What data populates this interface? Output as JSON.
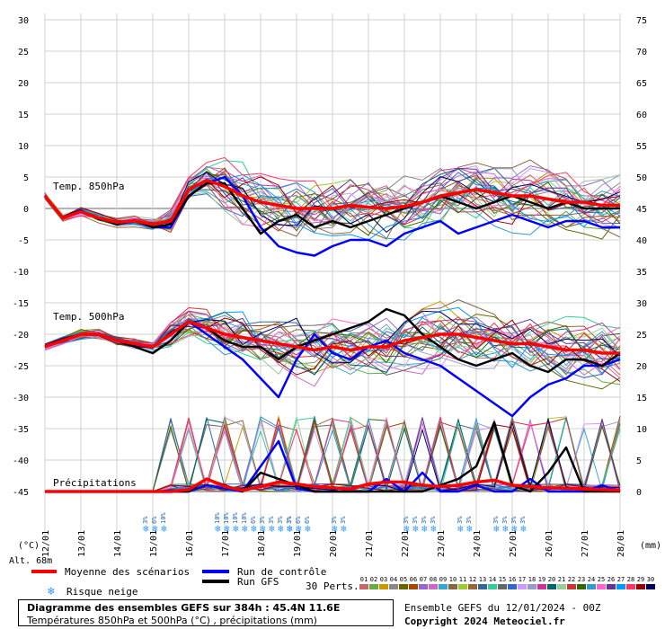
{
  "chart_data": {
    "type": "line",
    "title": "Diagramme des ensembles GEFS sur 384h : 45.4N 11.6E",
    "subtitle": "Températures 850hPa et 500hPa (°C) , précipitations (mm)",
    "run_info": "Ensemble GEFS du 12/01/2024 - 00Z",
    "copyright": "Copyright 2024 Meteociel.fr",
    "left_axis_unit": "(°C)",
    "right_axis_unit": "(mm)",
    "altitude_label": "Alt. 68m",
    "left_ticks": [
      30,
      25,
      20,
      15,
      10,
      5,
      0,
      -5,
      -10,
      -15,
      -20,
      -25,
      -30,
      -35,
      -40,
      -45
    ],
    "right_ticks": [
      75,
      70,
      65,
      60,
      55,
      50,
      45,
      40,
      35,
      30,
      25,
      20,
      15,
      10,
      5,
      0
    ],
    "ylim": [
      -45,
      30
    ],
    "right_ylim": [
      0,
      75
    ],
    "x_dates": [
      "12/01",
      "13/01",
      "14/01",
      "15/01",
      "16/01",
      "17/01",
      "18/01",
      "19/01",
      "20/01",
      "21/01",
      "22/01",
      "23/01",
      "24/01",
      "25/01",
      "26/01",
      "27/01",
      "28/01"
    ],
    "grid": true,
    "section_labels": {
      "t850": "Temp. 850hPa",
      "t500": "Temp. 500hPa",
      "precip": "Précipitations"
    },
    "hours": [
      0,
      12,
      24,
      36,
      48,
      60,
      72,
      84,
      96,
      108,
      120,
      132,
      144,
      156,
      168,
      180,
      192,
      204,
      216,
      228,
      240,
      252,
      264,
      276,
      288,
      300,
      312,
      324,
      336,
      348,
      360,
      372,
      384
    ],
    "series": [
      {
        "name": "Moyenne des scénarios",
        "group": "t850",
        "color": "#ff0000",
        "values": [
          2,
          -1.5,
          -0.5,
          -1.5,
          -2.2,
          -2,
          -2.5,
          -2,
          3,
          4.5,
          3.5,
          2,
          1,
          0.5,
          0,
          0,
          0,
          0.5,
          0.2,
          0,
          0.3,
          1,
          2,
          2.5,
          3,
          2.5,
          2,
          2,
          1.5,
          1,
          1,
          0.5,
          0.5
        ]
      },
      {
        "name": "Run de contrôle",
        "group": "t850",
        "color": "#0000ff",
        "values": [
          2,
          -1.5,
          -0.5,
          -1.5,
          -2.5,
          -2,
          -3,
          -3,
          2,
          4,
          5,
          2,
          -3,
          -6,
          -7,
          -7.5,
          -6,
          -5,
          -5,
          -6,
          -4,
          -3,
          -2,
          -4,
          -3,
          -2,
          -1,
          -2,
          -3,
          -2,
          -2,
          -3,
          -3
        ]
      },
      {
        "name": "Run GFS",
        "group": "t850",
        "color": "#000000",
        "values": [
          2,
          -1.5,
          -0.5,
          -1.5,
          -2.5,
          -2,
          -3,
          -2.5,
          2,
          4,
          4,
          0,
          -4,
          -2,
          -1,
          -3,
          -2,
          -3,
          -2,
          -1,
          0,
          1,
          2,
          1,
          0,
          1,
          2,
          1,
          0,
          1,
          0,
          0,
          0
        ]
      },
      {
        "name": "Moyenne des scénarios",
        "group": "t500",
        "color": "#ff0000",
        "values": [
          -22,
          -21,
          -20,
          -20,
          -21,
          -21.5,
          -22,
          -20,
          -18,
          -19,
          -20,
          -20.5,
          -21,
          -21.5,
          -22,
          -22.5,
          -22,
          -22.5,
          -22,
          -22,
          -21,
          -20.5,
          -20,
          -20,
          -20.5,
          -21,
          -21.5,
          -21.5,
          -22,
          -22.5,
          -22.5,
          -23,
          -23
        ]
      },
      {
        "name": "Run de contrôle",
        "group": "t500",
        "color": "#0000ff",
        "values": [
          -22,
          -21,
          -20,
          -20,
          -21,
          -22,
          -23,
          -21,
          -18,
          -20,
          -22,
          -24,
          -27,
          -30,
          -24,
          -20,
          -23,
          -24,
          -22,
          -21,
          -23,
          -24,
          -25,
          -27,
          -29,
          -31,
          -33,
          -30,
          -28,
          -27,
          -25,
          -25,
          -24
        ]
      },
      {
        "name": "Run GFS",
        "group": "t500",
        "color": "#000000",
        "values": [
          -22,
          -21,
          -20,
          -20,
          -21,
          -22,
          -23,
          -21,
          -18,
          -19,
          -21,
          -22,
          -22,
          -24,
          -22,
          -21,
          -20,
          -19,
          -18,
          -16,
          -17,
          -20,
          -22,
          -24,
          -25,
          -24,
          -23,
          -25,
          -26,
          -24,
          -24,
          -25,
          -23
        ]
      },
      {
        "name": "Moyenne des scénarios",
        "group": "precip",
        "color": "#ff0000",
        "values": [
          0,
          0,
          0,
          0,
          0,
          0,
          0,
          0,
          0.3,
          2,
          0.8,
          0.2,
          0.8,
          1.5,
          1.2,
          0.8,
          0.6,
          0.4,
          1.2,
          1.5,
          1.5,
          1,
          0.8,
          1,
          1.5,
          1.8,
          1,
          0.8,
          0.6,
          0.5,
          0.4,
          0.3,
          0.2
        ]
      },
      {
        "name": "Run de contrôle",
        "group": "precip",
        "color": "#0000ff",
        "values": [
          0,
          0,
          0,
          0,
          0,
          0,
          0,
          0,
          0,
          1,
          0.5,
          0,
          4,
          8,
          0.5,
          0,
          0,
          0,
          0,
          2,
          0,
          3,
          0,
          0,
          1,
          0,
          0,
          2,
          0,
          0,
          0,
          1,
          0
        ]
      },
      {
        "name": "Run GFS",
        "group": "precip",
        "color": "#000000",
        "values": [
          0,
          0,
          0,
          0,
          0,
          0,
          0,
          0,
          0,
          2,
          1,
          0,
          3,
          2,
          1,
          0,
          0,
          0,
          0,
          0,
          0,
          0,
          1,
          2,
          4,
          11,
          1,
          0,
          3,
          7,
          0,
          0,
          0
        ]
      }
    ],
    "snow_risk": [
      {
        "hour": 72,
        "labels": [
          "3%",
          "6%",
          "10%"
        ]
      },
      {
        "hour": 120,
        "labels": [
          "10%",
          "10%",
          "10%",
          "10%",
          "6%",
          "3%",
          "3%",
          "3%",
          "3%"
        ]
      },
      {
        "hour": 168,
        "labels": [
          "3%",
          "6%",
          "6%"
        ]
      },
      {
        "hour": 198,
        "labels": [
          "3%",
          "3%"
        ]
      },
      {
        "hour": 246,
        "labels": [
          "3%",
          "3%",
          "3%",
          "3%"
        ]
      },
      {
        "hour": 282,
        "labels": [
          "3%",
          "3%"
        ]
      },
      {
        "hour": 306,
        "labels": [
          "3%",
          "3%",
          "3%",
          "3%"
        ]
      }
    ],
    "legend": [
      {
        "label": "Moyenne des scénarios",
        "color": "#ff0000"
      },
      {
        "label": "Run de contrôle",
        "color": "#0000ff"
      },
      {
        "label": "Run GFS",
        "color": "#000000"
      },
      {
        "label": "Risque neige",
        "icon": "snowflake-icon",
        "color": "#3399ff"
      }
    ],
    "perturbations": {
      "label": "30 Perts.",
      "ids": [
        "01",
        "02",
        "03",
        "04",
        "05",
        "06",
        "07",
        "08",
        "09",
        "10",
        "11",
        "12",
        "13",
        "14",
        "15",
        "16",
        "17",
        "18",
        "19",
        "20",
        "21",
        "22",
        "23",
        "24",
        "25",
        "26",
        "27",
        "28",
        "29",
        "30"
      ],
      "colors": [
        "#cc6666",
        "#66aa44",
        "#cc9900",
        "#888888",
        "#666600",
        "#aa4400",
        "#9966cc",
        "#cc66cc",
        "#33aacc",
        "#886644",
        "#99cc33",
        "#996633",
        "#336699",
        "#33cc99",
        "#666666",
        "#3366cc",
        "#cc99ff",
        "#9999cc",
        "#cc3399",
        "#006666",
        "#99cc99",
        "#cc3333",
        "#336600",
        "#3399cc",
        "#ff66cc",
        "#663399",
        "#0099ff",
        "#ff3366",
        "#990000",
        "#000066"
      ]
    }
  }
}
